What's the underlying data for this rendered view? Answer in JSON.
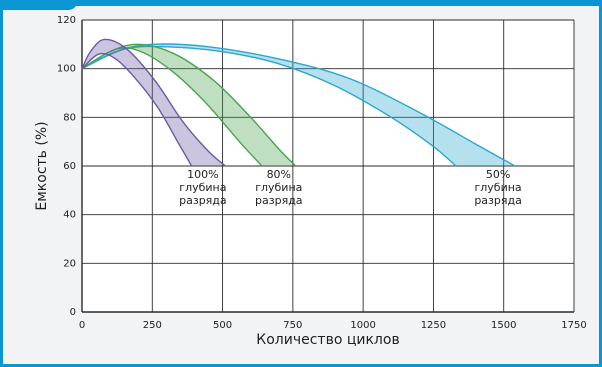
{
  "chart_data": {
    "type": "area",
    "title": "",
    "xlabel": "Количество циклов",
    "ylabel": "Емкость (%)",
    "xlim": [
      0,
      1750
    ],
    "ylim": [
      0,
      120
    ],
    "x_ticks": [
      "0",
      "250",
      "500",
      "750",
      "1000",
      "1250",
      "1500",
      "1750"
    ],
    "y_ticks": [
      "0",
      "20",
      "40",
      "60",
      "80",
      "100",
      "120"
    ],
    "grid": true,
    "series": [
      {
        "color": "#6a5aa6",
        "peak_x": 80,
        "peak_y": 112,
        "upper": [
          [
            0,
            100
          ],
          [
            30,
            107
          ],
          [
            80,
            112
          ],
          [
            160,
            108
          ],
          [
            260,
            95
          ],
          [
            360,
            78
          ],
          [
            450,
            66
          ],
          [
            510,
            60
          ]
        ],
        "lower": [
          [
            0,
            100
          ],
          [
            60,
            106
          ],
          [
            120,
            104
          ],
          [
            190,
            96
          ],
          [
            270,
            84
          ],
          [
            340,
            70
          ],
          [
            390,
            60
          ]
        ],
        "annotation": [
          "100%",
          "глубина",
          "разряда"
        ]
      },
      {
        "color": "#4aa34f",
        "peak_x": 200,
        "peak_y": 110,
        "upper": [
          [
            0,
            100
          ],
          [
            100,
            107
          ],
          [
            200,
            110
          ],
          [
            330,
            106
          ],
          [
            470,
            95
          ],
          [
            600,
            80
          ],
          [
            700,
            67
          ],
          [
            760,
            60
          ]
        ],
        "lower": [
          [
            0,
            100
          ],
          [
            120,
            108
          ],
          [
            210,
            107
          ],
          [
            320,
            99
          ],
          [
            440,
            86
          ],
          [
            560,
            70
          ],
          [
            640,
            60
          ]
        ],
        "annotation": [
          "80%",
          "глубина",
          "разряда"
        ]
      },
      {
        "color": "#2aa7cf",
        "peak_x": 250,
        "peak_y": 110,
        "upper": [
          [
            0,
            100
          ],
          [
            120,
            107
          ],
          [
            250,
            110
          ],
          [
            450,
            109
          ],
          [
            700,
            104
          ],
          [
            950,
            96
          ],
          [
            1200,
            82
          ],
          [
            1400,
            69
          ],
          [
            1540,
            60
          ]
        ],
        "lower": [
          [
            0,
            100
          ],
          [
            150,
            108
          ],
          [
            300,
            109
          ],
          [
            500,
            107
          ],
          [
            700,
            102
          ],
          [
            900,
            93
          ],
          [
            1100,
            80
          ],
          [
            1250,
            68
          ],
          [
            1330,
            60
          ]
        ],
        "annotation": [
          "50%",
          "глубина",
          "разряда"
        ]
      }
    ],
    "annotation_positions_x": [
      430,
      700,
      1480
    ]
  }
}
